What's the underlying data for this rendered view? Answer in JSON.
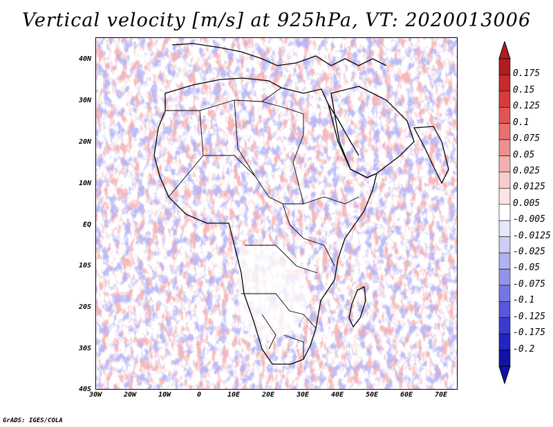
{
  "title": "Vertical velocity [m/s] at 925hPa, VT: 2020013006",
  "credit": "GrADS: IGES/COLA",
  "lat_ticks": [
    "40N",
    "30N",
    "20N",
    "10N",
    "EQ",
    "10S",
    "20S",
    "30S",
    "40S"
  ],
  "lon_ticks": [
    "30W",
    "20W",
    "10W",
    "0",
    "10E",
    "20E",
    "30E",
    "40E",
    "50E",
    "60E",
    "70E"
  ],
  "colorbar": {
    "labels": [
      "0.175",
      "0.15",
      "0.125",
      "0.1",
      "0.075",
      "0.05",
      "0.025",
      "0.0125",
      "0.005",
      "-0.005",
      "-0.0125",
      "-0.025",
      "-0.05",
      "-0.075",
      "-0.1",
      "-0.125",
      "-0.175",
      "-0.2"
    ],
    "colors": [
      "#b01d1d",
      "#c72a2a",
      "#d83b3b",
      "#e25555",
      "#ea7070",
      "#f08f8f",
      "#f5afaf",
      "#f9cccc",
      "#fce4e4",
      "#ffffff",
      "#e6e6fc",
      "#cdcdf7",
      "#b0b0f2",
      "#9393ec",
      "#7575e4",
      "#5757db",
      "#3b3bcf",
      "#2424c0",
      "#1111a8"
    ]
  },
  "map": {
    "lon_range": [
      -30,
      75
    ],
    "lat_range": [
      -40,
      45
    ]
  }
}
